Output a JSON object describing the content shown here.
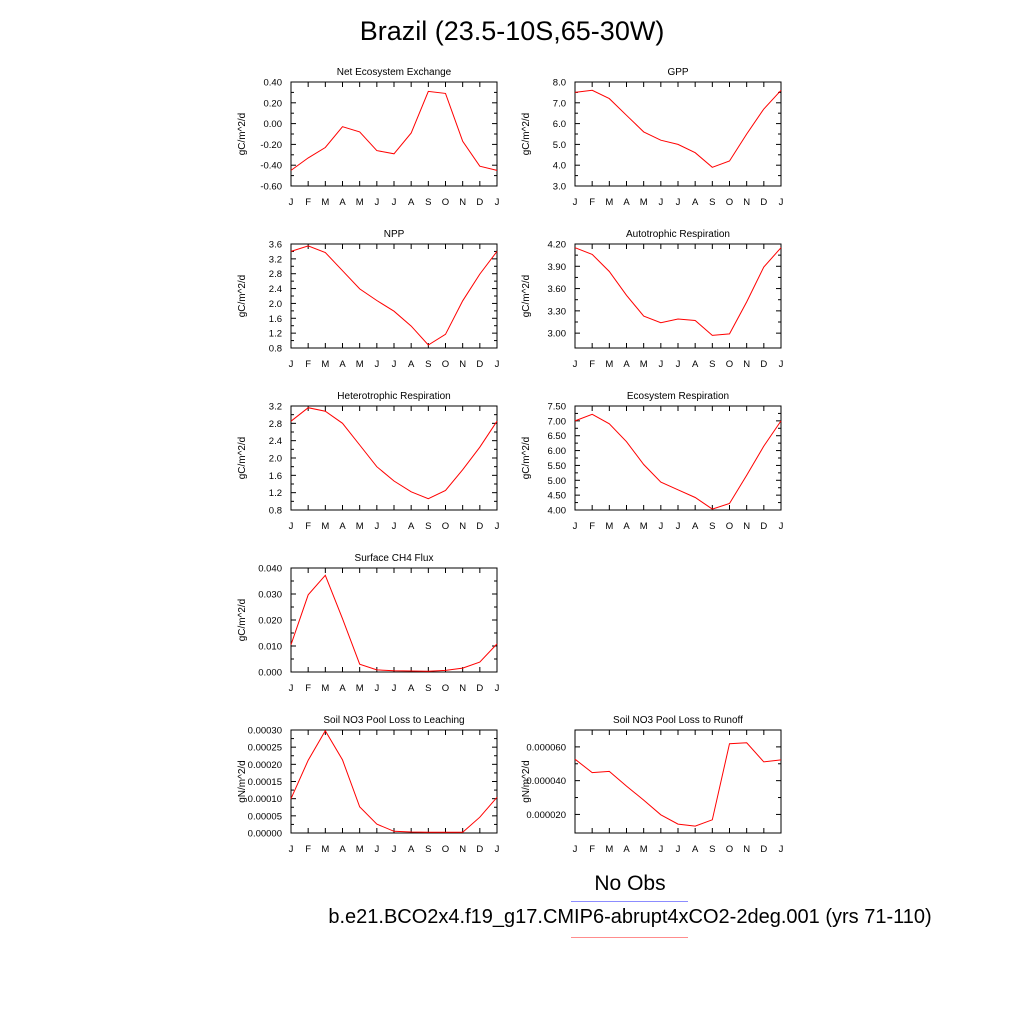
{
  "page_title": "Brazil (23.5-10S,65-30W)",
  "legend": {
    "obs_label": "No Obs",
    "obs_color": "#8c8cff",
    "case_label": "b.e21.BCO2x4.f19_g17.CMIP6-abrupt4xCO2-2deg.001 (yrs 71-110)",
    "case_color": "#ff0000"
  },
  "chart_data": [
    {
      "type": "line",
      "title": "Net Ecosystem Exchange",
      "ylabel": "gC/m^2/d",
      "x": [
        "J",
        "F",
        "M",
        "A",
        "M",
        "J",
        "J",
        "A",
        "S",
        "O",
        "N",
        "D",
        "J"
      ],
      "ylim": [
        -0.6,
        0.4
      ],
      "yticks": [
        "0.40",
        "0.20",
        "0.00",
        "-0.20",
        "-0.40",
        "-0.60"
      ],
      "series": [
        {
          "values": [
            -0.45,
            -0.33,
            -0.23,
            -0.03,
            -0.08,
            -0.26,
            -0.29,
            -0.09,
            0.31,
            0.29,
            -0.17,
            -0.41,
            -0.45
          ]
        }
      ]
    },
    {
      "type": "line",
      "title": "GPP",
      "ylabel": "gC/m^2/d",
      "x": [
        "J",
        "F",
        "M",
        "A",
        "M",
        "J",
        "J",
        "A",
        "S",
        "O",
        "N",
        "D",
        "J"
      ],
      "ylim": [
        3.0,
        8.0
      ],
      "yticks": [
        "8.0",
        "7.0",
        "6.0",
        "5.0",
        "4.0",
        "3.0"
      ],
      "series": [
        {
          "values": [
            7.5,
            7.6,
            7.2,
            6.4,
            5.6,
            5.2,
            5.0,
            4.6,
            3.9,
            4.2,
            5.5,
            6.7,
            7.6
          ]
        }
      ]
    },
    {
      "type": "line",
      "title": "NPP",
      "ylabel": "gC/m^2/d",
      "x": [
        "J",
        "F",
        "M",
        "A",
        "M",
        "J",
        "J",
        "A",
        "S",
        "O",
        "N",
        "D",
        "J"
      ],
      "ylim": [
        0.8,
        3.6
      ],
      "yticks": [
        "3.6",
        "3.2",
        "2.8",
        "2.4",
        "2.0",
        "1.6",
        "1.2",
        "0.8"
      ],
      "series": [
        {
          "values": [
            3.4,
            3.55,
            3.37,
            2.88,
            2.39,
            2.08,
            1.79,
            1.39,
            0.88,
            1.17,
            2.07,
            2.79,
            3.4
          ]
        }
      ]
    },
    {
      "type": "line",
      "title": "Autotrophic Respiration",
      "ylabel": "gC/m^2/d",
      "x": [
        "J",
        "F",
        "M",
        "A",
        "M",
        "J",
        "J",
        "A",
        "S",
        "O",
        "N",
        "D",
        "J"
      ],
      "ylim": [
        2.8,
        4.2
      ],
      "yticks": [
        "4.20",
        "3.90",
        "3.60",
        "3.30",
        "3.00"
      ],
      "series": [
        {
          "values": [
            4.15,
            4.06,
            3.83,
            3.51,
            3.23,
            3.14,
            3.19,
            3.17,
            2.97,
            2.99,
            3.42,
            3.89,
            4.15
          ]
        }
      ]
    },
    {
      "type": "line",
      "title": "Heterotrophic Respiration",
      "ylabel": "gC/m^2/d",
      "x": [
        "J",
        "F",
        "M",
        "A",
        "M",
        "J",
        "J",
        "A",
        "S",
        "O",
        "N",
        "D",
        "J"
      ],
      "ylim": [
        0.8,
        3.2
      ],
      "yticks": [
        "3.2",
        "2.8",
        "2.4",
        "2.0",
        "1.6",
        "1.2",
        "0.8"
      ],
      "series": [
        {
          "values": [
            2.85,
            3.16,
            3.08,
            2.8,
            2.3,
            1.8,
            1.47,
            1.22,
            1.06,
            1.25,
            1.73,
            2.25,
            2.85
          ]
        }
      ]
    },
    {
      "type": "line",
      "title": "Ecosystem Respiration",
      "ylabel": "gC/m^2/d",
      "x": [
        "J",
        "F",
        "M",
        "A",
        "M",
        "J",
        "J",
        "A",
        "S",
        "O",
        "N",
        "D",
        "J"
      ],
      "ylim": [
        4.0,
        7.5
      ],
      "yticks": [
        "7.50",
        "7.00",
        "6.50",
        "6.00",
        "5.50",
        "5.00",
        "4.50",
        "4.00"
      ],
      "series": [
        {
          "values": [
            7.0,
            7.22,
            6.9,
            6.3,
            5.53,
            4.94,
            4.68,
            4.42,
            4.03,
            4.22,
            5.17,
            6.15,
            7.0
          ]
        }
      ]
    },
    {
      "type": "line",
      "title": "Surface CH4 Flux",
      "ylabel": "gC/m^2/d",
      "x": [
        "J",
        "F",
        "M",
        "A",
        "M",
        "J",
        "J",
        "A",
        "S",
        "O",
        "N",
        "D",
        "J"
      ],
      "ylim": [
        0.0,
        0.04
      ],
      "yticks": [
        "0.040",
        "0.030",
        "0.020",
        "0.010",
        "0.000"
      ],
      "series": [
        {
          "values": [
            0.0105,
            0.0297,
            0.0372,
            0.0205,
            0.003,
            0.0008,
            0.0005,
            0.0004,
            0.0003,
            0.0006,
            0.0015,
            0.0038,
            0.0108
          ]
        }
      ]
    },
    {
      "type": "line",
      "title": "Soil NO3 Pool Loss to Leaching",
      "ylabel": "gN/m^2/d",
      "x": [
        "J",
        "F",
        "M",
        "A",
        "M",
        "J",
        "J",
        "A",
        "S",
        "O",
        "N",
        "D",
        "J"
      ],
      "ylim": [
        0.0,
        0.0003
      ],
      "yticks": [
        "0.00030",
        "0.00025",
        "0.00020",
        "0.00015",
        "0.00010",
        "0.00005",
        "0.00000"
      ],
      "series": [
        {
          "values": [
            0.0001,
            0.000212,
            0.000298,
            0.000213,
            7.6e-05,
            2.6e-05,
            5e-06,
            3e-06,
            2e-06,
            2e-06,
            2e-06,
            4.6e-05,
            0.000104
          ]
        }
      ]
    },
    {
      "type": "line",
      "title": "Soil NO3 Pool Loss to Runoff",
      "ylabel": "gN/m^2/d",
      "x": [
        "J",
        "F",
        "M",
        "A",
        "M",
        "J",
        "J",
        "A",
        "S",
        "O",
        "N",
        "D",
        "J"
      ],
      "ylim": [
        9e-06,
        7e-05
      ],
      "yticks": [
        "0.000060",
        "0.000040",
        "0.000020"
      ],
      "ytickvals": [
        6e-05,
        4e-05,
        2e-05
      ],
      "series": [
        {
          "values": [
            5.27e-05,
            4.48e-05,
            4.55e-05,
            3.68e-05,
            2.85e-05,
            1.98e-05,
            1.43e-05,
            1.31e-05,
            1.68e-05,
            6.19e-05,
            6.24e-05,
            5.11e-05,
            5.23e-05
          ]
        }
      ]
    }
  ]
}
